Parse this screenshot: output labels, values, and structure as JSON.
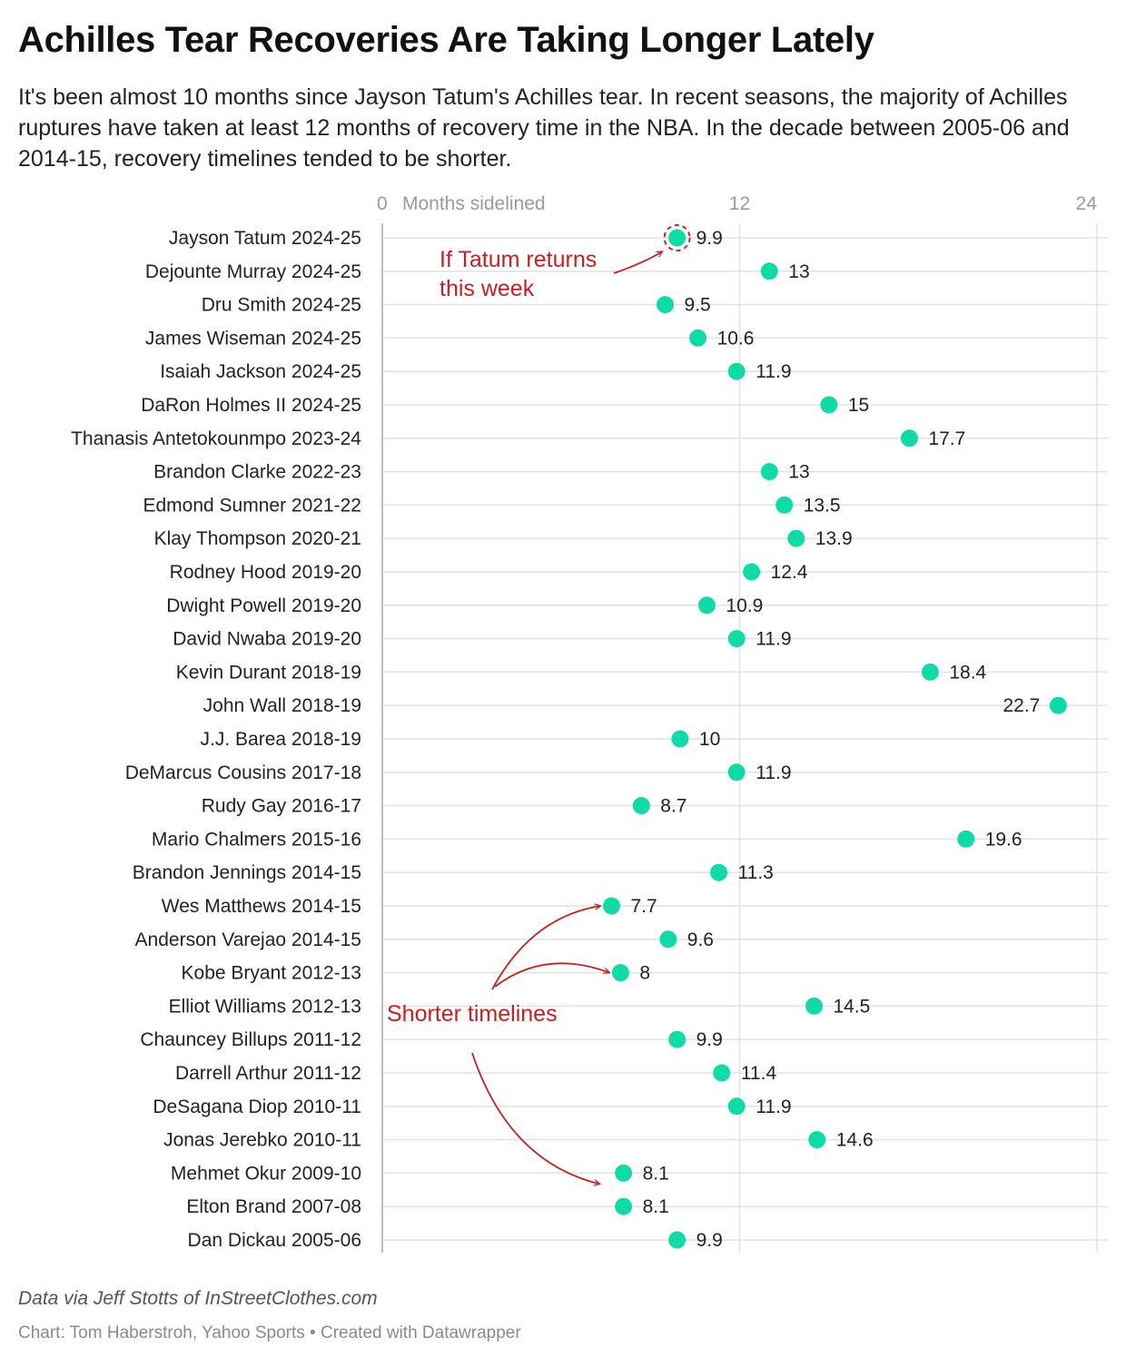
{
  "header": {
    "title": "Achilles Tear Recoveries Are Taking Longer Lately",
    "subtitle": "It's been almost 10 months since Jayson Tatum's Achilles tear. In recent seasons, the majority of Achilles ruptures have taken at least 12 months of recovery time in the NBA. In the decade between 2005-06 and 2014-15, recovery timelines tended to be shorter."
  },
  "footer": {
    "source": "Data via Jeff Stotts of InStreetClothes.com",
    "credit": "Chart: Tom Haberstroh, Yahoo Sports • Created with Datawrapper"
  },
  "colors": {
    "dot": "#10dba6",
    "annotation": "#c22222",
    "grid": "#e2e2e2",
    "axis": "#cfcfcf"
  },
  "chart_data": {
    "type": "scatter",
    "orientation": "dot-plot",
    "xlabel": "Months sidelined",
    "xlim": [
      0,
      24
    ],
    "xticks": [
      0,
      12,
      24
    ],
    "grid": true,
    "categories": [
      "Jayson Tatum 2024-25",
      "Dejounte Murray 2024-25",
      "Dru Smith 2024-25",
      "James Wiseman 2024-25",
      "Isaiah Jackson 2024-25",
      "DaRon Holmes II 2024-25",
      "Thanasis Antetokounmpo 2023-24",
      "Brandon Clarke 2022-23",
      "Edmond Sumner 2021-22",
      "Klay Thompson 2020-21",
      "Rodney Hood 2019-20",
      "Dwight Powell 2019-20",
      "David Nwaba 2019-20",
      "Kevin Durant 2018-19",
      "John Wall 2018-19",
      "J.J. Barea 2018-19",
      "DeMarcus Cousins 2017-18",
      "Rudy Gay 2016-17",
      "Mario Chalmers 2015-16",
      "Brandon Jennings 2014-15",
      "Wes Matthews 2014-15",
      "Anderson Varejao 2014-15",
      "Kobe Bryant 2012-13",
      "Elliot Williams 2012-13",
      "Chauncey Billups 2011-12",
      "Darrell Arthur 2011-12",
      "DeSagana Diop 2010-11",
      "Jonas Jerebko 2010-11",
      "Mehmet Okur 2009-10",
      "Elton Brand 2007-08",
      "Dan Dickau 2005-06"
    ],
    "values": [
      9.9,
      13,
      9.5,
      10.6,
      11.9,
      15,
      17.7,
      13,
      13.5,
      13.9,
      12.4,
      10.9,
      11.9,
      18.4,
      22.7,
      10,
      11.9,
      8.7,
      19.6,
      11.3,
      7.7,
      9.6,
      8,
      14.5,
      9.9,
      11.4,
      11.9,
      14.6,
      8.1,
      8.1,
      9.9
    ],
    "value_labels": [
      "9.9",
      "13",
      "9.5",
      "10.6",
      "11.9",
      "15",
      "17.7",
      "13",
      "13.5",
      "13.9",
      "12.4",
      "10.9",
      "11.9",
      "18.4",
      "22.7",
      "10",
      "11.9",
      "8.7",
      "19.6",
      "11.3",
      "7.7",
      "9.6",
      "8",
      "14.5",
      "9.9",
      "11.4",
      "11.9",
      "14.6",
      "8.1",
      "8.1",
      "9.9"
    ],
    "annotations": [
      {
        "text_lines": [
          "If Tatum returns",
          "this week"
        ],
        "target_rows": [
          0
        ]
      },
      {
        "text_lines": [
          "Shorter timelines"
        ],
        "target_rows": [
          20,
          22,
          28
        ]
      }
    ]
  }
}
